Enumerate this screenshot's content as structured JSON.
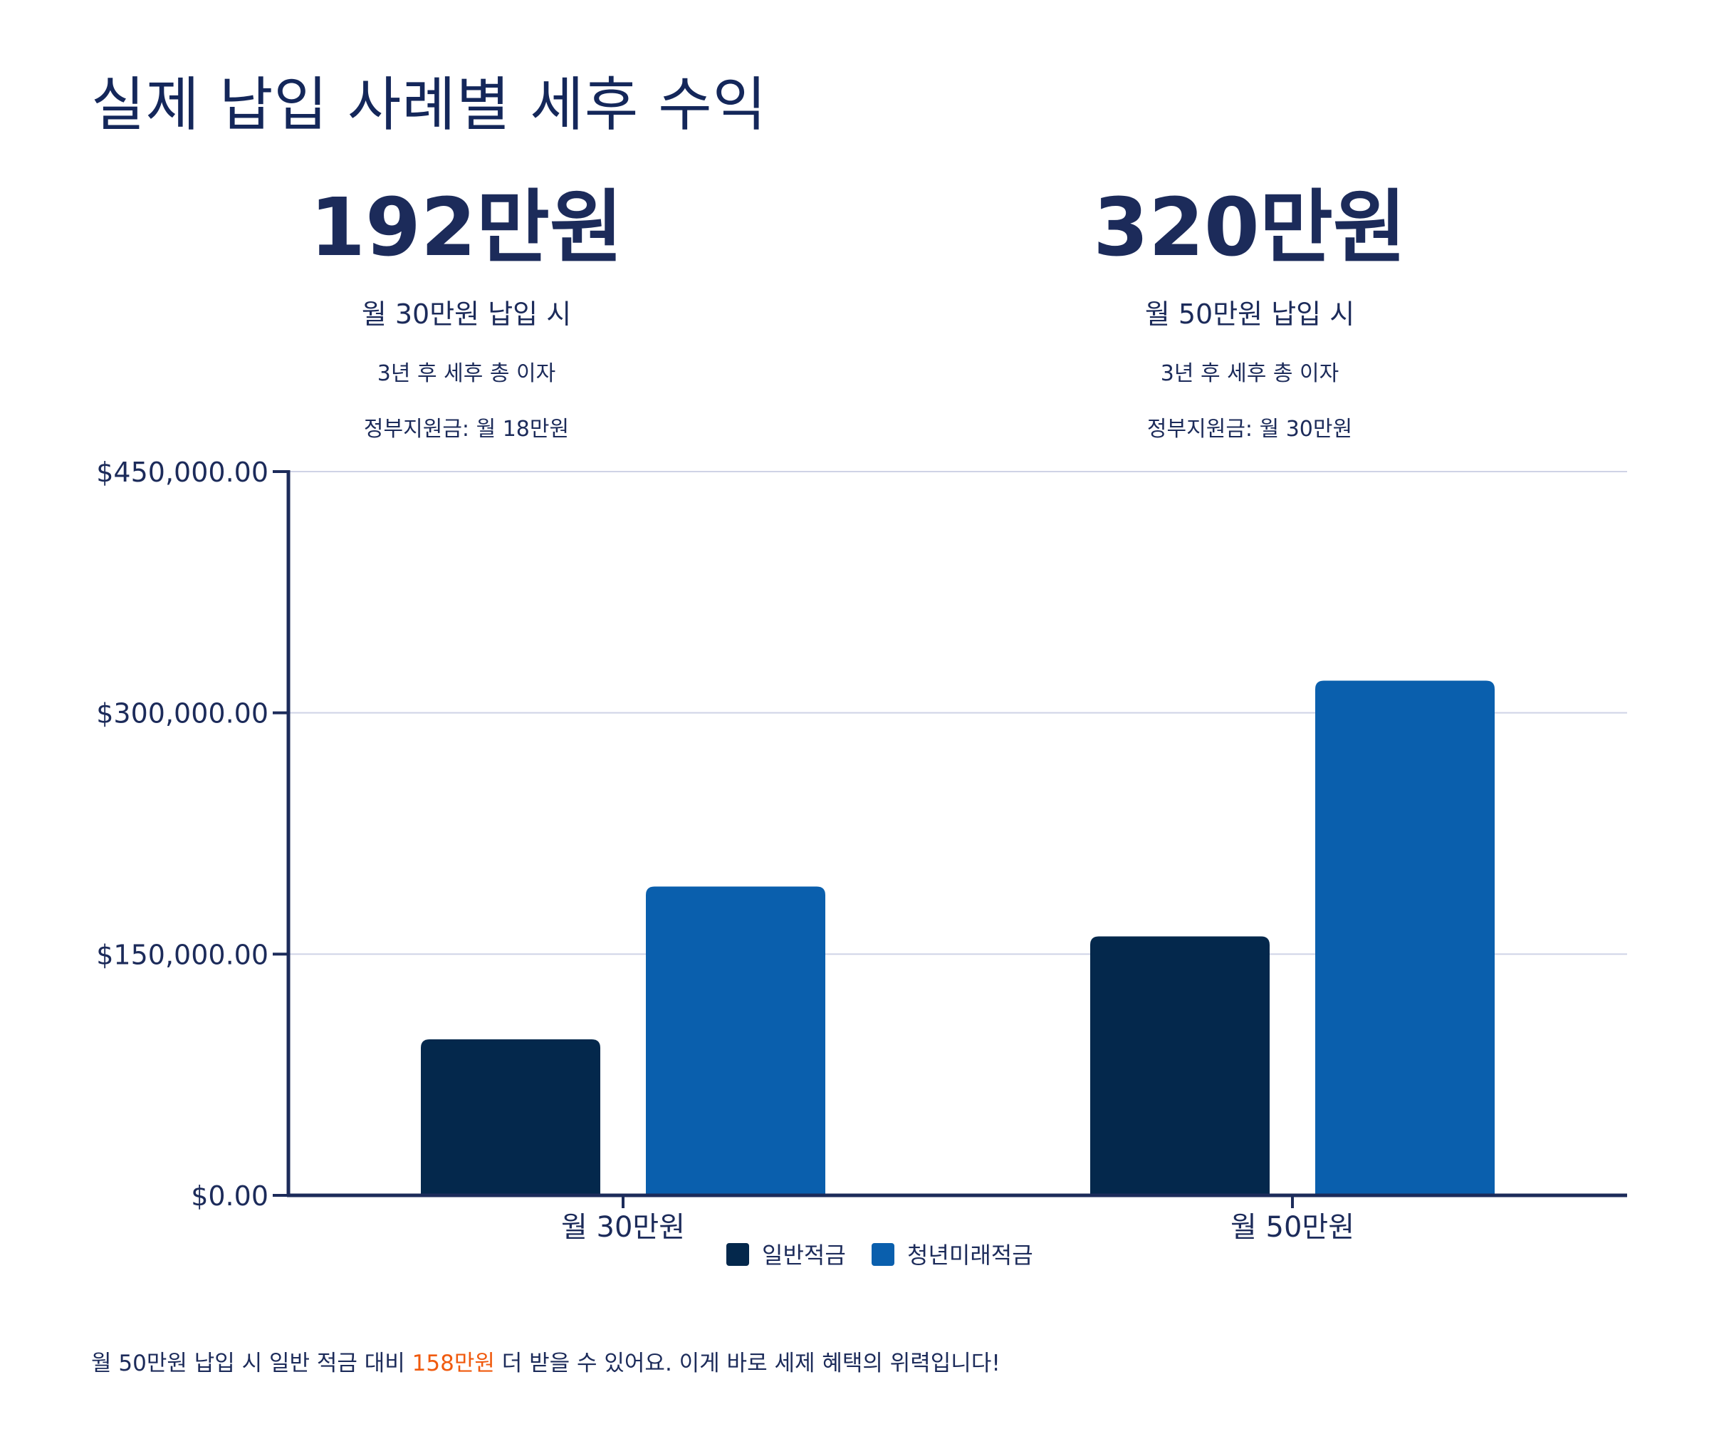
{
  "title": "실제 납입 사례별 세후 수익",
  "stats": [
    {
      "big": "192만원",
      "line1": "월 30만원 납입 시",
      "line2": "3년 후 세후 총 이자",
      "line3": "정부지원금: 월 18만원"
    },
    {
      "big": "320만원",
      "line1": "월 50만원 납입 시",
      "line2": "3년 후 세후 총 이자",
      "line3": "정부지원금: 월 30만원"
    }
  ],
  "footer": {
    "before": "월 50만원 납입 시 일반 적금 대비 ",
    "highlight": "158만원",
    "after": " 더 받을 수 있어요. 이게 바로 세제 혜택의 위력입니다!"
  },
  "colors": {
    "general": "#04284c",
    "youth": "#0a5fad",
    "axis": "#1c2b5a",
    "grid": "#cfd3e6",
    "highlight": "#f05a0e"
  },
  "chart_data": {
    "type": "bar",
    "categories": [
      "월 30만원",
      "월 50만원"
    ],
    "series": [
      {
        "name": "일반적금",
        "values": [
          97000,
          161000
        ]
      },
      {
        "name": "청년미래적금",
        "values": [
          192000,
          320000
        ]
      }
    ],
    "ylim": [
      0,
      450000
    ],
    "yticks": [
      0,
      150000,
      300000,
      450000
    ],
    "ytick_labels": [
      "$0.00",
      "$150,000.00",
      "$300,000.00",
      "$450,000.00"
    ],
    "grid": true,
    "legend": "bottom-center"
  }
}
